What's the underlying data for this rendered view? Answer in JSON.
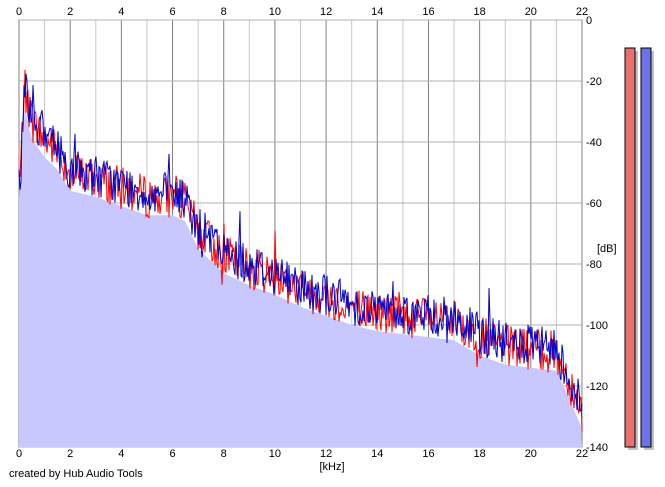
{
  "credit": "created by Hub Audio Tools",
  "chart_data": {
    "type": "line",
    "xlabel": "[kHz]",
    "ylabel": "[dB]",
    "xlim": [
      0,
      22
    ],
    "ylim": [
      -140,
      0
    ],
    "x_ticks": [
      0,
      2,
      4,
      6,
      8,
      10,
      12,
      14,
      16,
      18,
      20,
      22
    ],
    "y_ticks": [
      0,
      -20,
      -40,
      -60,
      -80,
      -100,
      -120,
      -140
    ],
    "grid": true,
    "fill_color": "#c8c8ff",
    "series": [
      {
        "color": "#ff0000",
        "x": [
          0.05,
          0.2,
          0.5,
          1.0,
          1.5,
          2.0,
          3.0,
          4.0,
          5.0,
          6.0,
          6.5,
          7.0,
          8.0,
          9.0,
          10.0,
          11.0,
          12.0,
          13.0,
          14.0,
          15.0,
          16.0,
          17.0,
          18.0,
          19.0,
          20.0,
          21.0,
          21.5,
          22.0
        ],
        "values": [
          -52,
          -22,
          -33,
          -39,
          -43,
          -50,
          -52,
          -55,
          -58,
          -58,
          -60,
          -69,
          -77,
          -81,
          -84,
          -88,
          -91,
          -94,
          -96,
          -97,
          -98,
          -99,
          -104,
          -107,
          -108,
          -109,
          -118,
          -128
        ]
      },
      {
        "color": "#0000cc",
        "x": [
          0.05,
          0.2,
          0.5,
          1.0,
          1.5,
          2.0,
          3.0,
          4.0,
          5.0,
          6.0,
          6.5,
          7.0,
          8.0,
          9.0,
          10.0,
          11.0,
          12.0,
          13.0,
          14.0,
          15.0,
          16.0,
          17.0,
          18.0,
          19.0,
          20.0,
          21.0,
          21.5,
          22.0
        ],
        "values": [
          -54,
          -20,
          -31,
          -38,
          -42,
          -49,
          -51,
          -54,
          -57,
          -57,
          -59,
          -68,
          -76,
          -80,
          -83,
          -87,
          -90,
          -93,
          -95,
          -96,
          -97,
          -98,
          -103,
          -106,
          -107,
          -108,
          -117,
          -127
        ]
      }
    ]
  },
  "meters": [
    {
      "color": "#e87070",
      "shadow": "#c0c0c0",
      "level": 1.0
    },
    {
      "color": "#7070e8",
      "shadow": "#c0c0c0",
      "level": 1.0
    }
  ]
}
